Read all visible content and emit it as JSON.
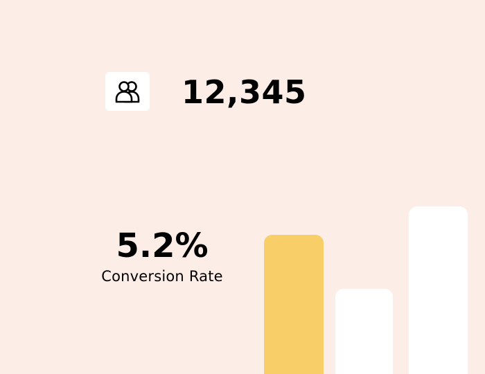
{
  "stats": {
    "user_count": "12,345",
    "conversion_value": "5.2%",
    "conversion_label": "Conversion Rate"
  },
  "icons": {
    "users": "users-icon"
  },
  "colors": {
    "background": "#FDEDE7",
    "highlight_bar": "#F8CE69",
    "bar": "#FFFFFF",
    "text": "#000000"
  },
  "bars": [
    {
      "level": 0.83,
      "highlighted": true
    },
    {
      "level": 0.51,
      "highlighted": false
    },
    {
      "level": 1.0,
      "highlighted": false
    }
  ]
}
